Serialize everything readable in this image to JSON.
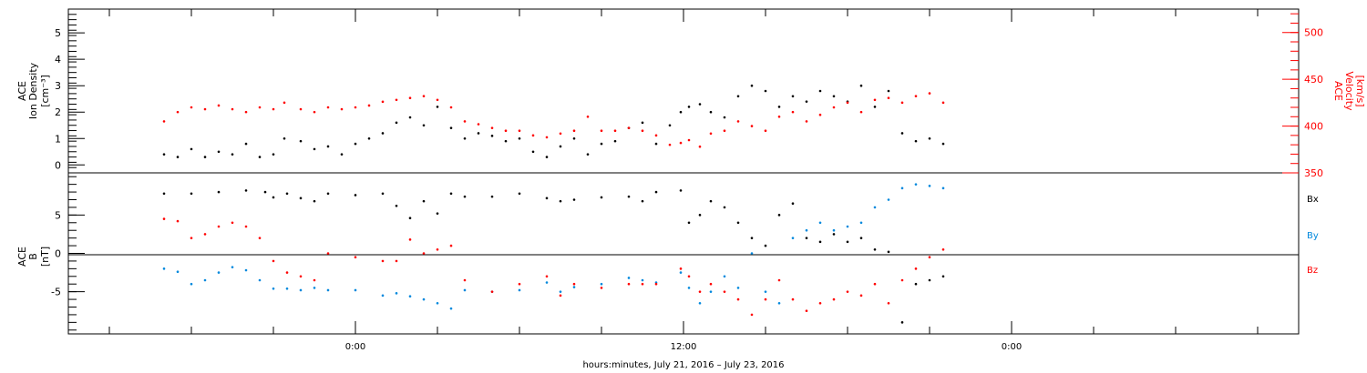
{
  "chart_data": [
    {
      "type": "scatter",
      "panel": "top",
      "left_axis_label": [
        "ACE",
        "Ion Density",
        "[cm⁻³]"
      ],
      "right_axis_label": [
        "ACE",
        "Velocity",
        "[km/s]"
      ],
      "left_ylim": [
        -0.3,
        5.9
      ],
      "right_ylim": [
        350,
        525
      ],
      "left_ticks": [
        "0",
        "1",
        "2",
        "3",
        "4",
        "5"
      ],
      "right_ticks": [
        "350",
        "400",
        "450",
        "500"
      ],
      "series": [
        {
          "color": "#000000",
          "axis": "left",
          "x": [
            -7,
            -6.5,
            -6,
            -5.5,
            -5,
            -4.5,
            -4,
            -3.5,
            -3,
            -2.6,
            -2,
            -1.5,
            -1,
            -0.5,
            0,
            0.5,
            1,
            1.5,
            2,
            2.5,
            3,
            3.5,
            4,
            4.5,
            5,
            5.5,
            6,
            6.5,
            7,
            7.5,
            8,
            8.5,
            9,
            9.5,
            10,
            10.5,
            11,
            11.5,
            11.9,
            12.2,
            12.6,
            13,
            13.5,
            14,
            14.5,
            15,
            15.5,
            16,
            16.5,
            17,
            17.5,
            18,
            18.5,
            19,
            19.5,
            20,
            20.5,
            21,
            21.5
          ],
          "y": [
            0.4,
            0.3,
            0.6,
            0.3,
            0.5,
            0.4,
            0.8,
            0.3,
            0.4,
            1.0,
            0.9,
            0.6,
            0.7,
            0.4,
            0.8,
            1.0,
            1.2,
            1.6,
            1.8,
            1.5,
            2.2,
            1.4,
            1.0,
            1.2,
            1.1,
            0.9,
            1.0,
            0.5,
            0.3,
            0.7,
            1.0,
            0.4,
            0.8,
            0.9,
            1.4,
            1.6,
            0.8,
            1.5,
            2.0,
            2.2,
            2.3,
            2.0,
            1.8,
            2.6,
            3.0,
            2.8,
            2.2,
            2.6,
            2.4,
            2.8,
            2.6,
            2.4,
            3.0,
            2.2,
            2.8,
            1.2,
            0.9,
            1.0,
            0.8
          ]
        },
        {
          "color": "#ff0000",
          "axis": "right",
          "x": [
            -7,
            -6.5,
            -6,
            -5.5,
            -5,
            -4.5,
            -4,
            -3.5,
            -3,
            -2.6,
            -2,
            -1.5,
            -1,
            -0.5,
            0,
            0.5,
            1,
            1.5,
            2,
            2.5,
            3,
            3.5,
            4,
            4.5,
            5,
            5.5,
            6,
            6.5,
            7,
            7.5,
            8,
            8.5,
            9,
            9.5,
            10,
            10.5,
            11,
            11.5,
            11.9,
            12.2,
            12.6,
            13,
            13.5,
            14,
            14.5,
            15,
            15.5,
            16,
            16.5,
            17,
            17.5,
            18,
            18.5,
            19,
            19.5,
            20,
            20.5,
            21,
            21.5
          ],
          "y": [
            405,
            415,
            420,
            418,
            422,
            418,
            415,
            420,
            418,
            425,
            418,
            415,
            420,
            418,
            420,
            422,
            426,
            428,
            430,
            432,
            428,
            420,
            405,
            402,
            398,
            395,
            395,
            390,
            388,
            392,
            395,
            410,
            395,
            395,
            398,
            395,
            390,
            380,
            382,
            385,
            378,
            392,
            395,
            405,
            400,
            395,
            410,
            415,
            405,
            412,
            420,
            425,
            415,
            428,
            430,
            425,
            432,
            435,
            425
          ]
        }
      ]
    },
    {
      "type": "scatter",
      "panel": "bottom",
      "left_axis_label": [
        "ACE",
        "B",
        "[nT]"
      ],
      "ylim": [
        -10.5,
        10.5
      ],
      "ticks": [
        "-5",
        "0",
        "5"
      ],
      "legend": [
        {
          "label": "Bx",
          "color": "#000000"
        },
        {
          "label": "By",
          "color": "#0088dd"
        },
        {
          "label": "Bz",
          "color": "#ff0000"
        }
      ],
      "series": [
        {
          "name": "Bx",
          "color": "#000000",
          "x": [
            -7,
            -6,
            -5,
            -4,
            -3.3,
            -3,
            -2.5,
            -2,
            -1.5,
            -1,
            0,
            1,
            1.5,
            2,
            2.5,
            3,
            3.5,
            4,
            5,
            6,
            7,
            7.5,
            8,
            9,
            10,
            10.5,
            11,
            11.9,
            12.2,
            12.6,
            13,
            13.5,
            14,
            14.5,
            15,
            15.5,
            16,
            16.5,
            17,
            17.5,
            18,
            18.5,
            19,
            19.5,
            20,
            20.5,
            21,
            21.5
          ],
          "y": [
            7.8,
            7.8,
            8.0,
            8.2,
            8.0,
            7.3,
            7.8,
            7.2,
            6.8,
            7.8,
            7.6,
            7.8,
            6.2,
            4.6,
            6.8,
            5.2,
            7.8,
            7.4,
            7.4,
            7.8,
            7.2,
            6.8,
            7.0,
            7.3,
            7.4,
            6.8,
            8.0,
            8.2,
            4.0,
            5.0,
            6.8,
            6.0,
            4.0,
            2.0,
            1.0,
            5.0,
            6.5,
            2.0,
            1.5,
            2.5,
            1.5,
            2.0,
            0.5,
            0.2,
            -9.0,
            -4.0,
            -3.5,
            -3.0
          ]
        },
        {
          "name": "By",
          "color": "#0088dd",
          "x": [
            -7,
            -6.5,
            -6,
            -5.5,
            -5,
            -4.5,
            -4,
            -3.5,
            -3,
            -2.5,
            -2,
            -1.5,
            -1,
            0,
            1,
            1.5,
            2,
            2.5,
            3,
            3.5,
            4,
            5,
            6,
            7,
            7.5,
            8,
            9,
            10,
            10.5,
            11,
            11.9,
            12.2,
            12.6,
            13,
            13.5,
            14,
            14.5,
            15,
            15.5,
            16,
            16.5,
            17,
            17.5,
            18,
            18.5,
            19,
            19.5,
            20,
            20.5,
            21,
            21.5
          ],
          "y": [
            -2.0,
            -2.4,
            -4.0,
            -3.5,
            -2.5,
            -1.8,
            -2.2,
            -3.5,
            -4.6,
            -4.6,
            -4.8,
            -4.5,
            -4.8,
            -4.8,
            -5.5,
            -5.2,
            -5.6,
            -6.0,
            -6.5,
            -7.2,
            -4.8,
            -5.0,
            -4.8,
            -3.8,
            -5.0,
            -4.4,
            -4.0,
            -3.2,
            -3.5,
            -3.8,
            -2.5,
            -4.5,
            -6.5,
            -5.0,
            -3.0,
            -4.5,
            0.0,
            -5.0,
            -6.5,
            2.0,
            3.0,
            4.0,
            3.0,
            3.5,
            4.0,
            6.0,
            7.0,
            8.5,
            9.0,
            8.8,
            8.5
          ]
        },
        {
          "name": "Bz",
          "color": "#ff0000",
          "x": [
            -7,
            -6.5,
            -6,
            -5.5,
            -5,
            -4.5,
            -4,
            -3.5,
            -3,
            -2.5,
            -2,
            -1.5,
            -1,
            0,
            1,
            1.5,
            2,
            2.5,
            3,
            3.5,
            4,
            5,
            6,
            7,
            7.5,
            8,
            9,
            10,
            10.5,
            11,
            11.9,
            12.2,
            12.6,
            13,
            13.5,
            14,
            14.5,
            15,
            15.5,
            16,
            16.5,
            17,
            17.5,
            18,
            18.5,
            19,
            19.5,
            20,
            20.5,
            21,
            21.5
          ],
          "y": [
            4.5,
            4.2,
            2.0,
            2.5,
            3.5,
            4.0,
            3.5,
            2.0,
            -1.0,
            -2.5,
            -3.0,
            -3.5,
            0.0,
            -0.5,
            -1.0,
            -1.0,
            1.8,
            0.0,
            0.5,
            1.0,
            -3.5,
            -5.0,
            -4.0,
            -3.0,
            -5.5,
            -4.0,
            -4.5,
            -4.0,
            -4.0,
            -4.0,
            -2.0,
            -3.0,
            -5.0,
            -4.0,
            -5.0,
            -6.0,
            -8.0,
            -6.0,
            -3.5,
            -6.0,
            -7.5,
            -6.5,
            -6.0,
            -5.0,
            -5.5,
            -4.0,
            -6.5,
            -3.5,
            -2.0,
            -0.5,
            0.5
          ]
        }
      ]
    }
  ],
  "x_axis": {
    "label": "hours:minutes, July 21, 2016 – July 23, 2016",
    "range_hours": [
      -10.5,
      34.5
    ],
    "major_ticks": [
      {
        "hour": 0,
        "label": "0:00"
      },
      {
        "hour": 12,
        "label": "12:00"
      },
      {
        "hour": 24,
        "label": "0:00"
      }
    ]
  }
}
